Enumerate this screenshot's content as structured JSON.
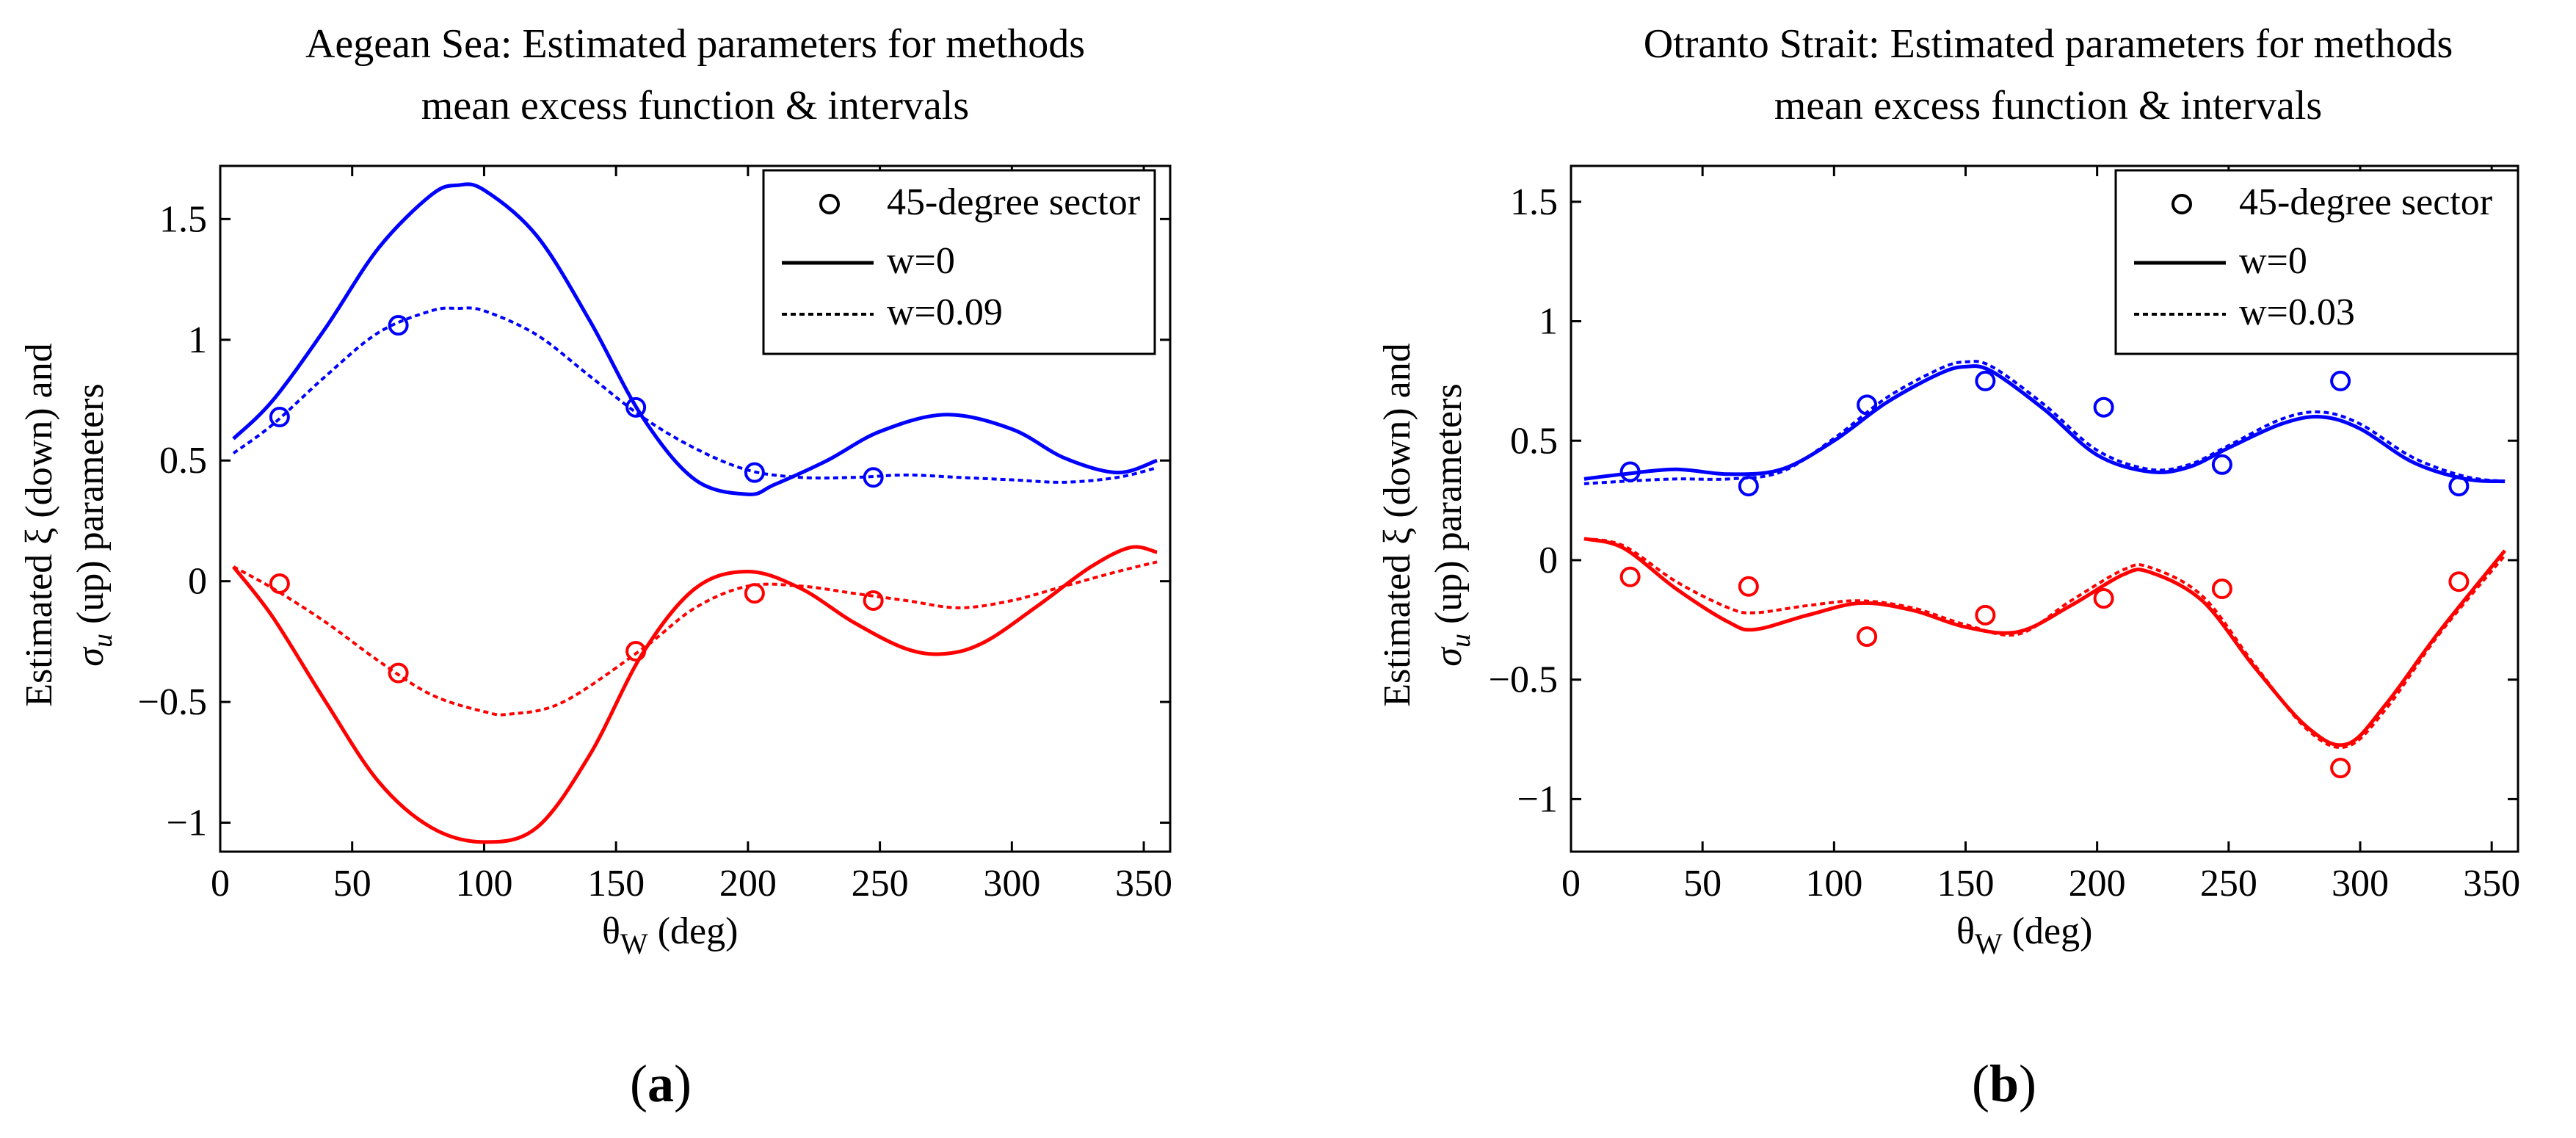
{
  "chart_data": [
    {
      "type": "line",
      "title_line1": "Aegean Sea: Estimated parameters for methods",
      "title_line2": "mean excess function & intervals",
      "xlabel_main": "θ",
      "xlabel_sub": "W",
      "xlabel_unit": "(deg)",
      "ylabel_line1": "Estimated  ξ (down) and",
      "ylabel_line2": "σ",
      "ylabel_line2_sub": "u",
      "ylabel_line2_rest": " (up) parameters",
      "xlim": [
        0,
        360
      ],
      "ylim": [
        -1.12,
        1.72
      ],
      "xticks": [
        0,
        50,
        100,
        150,
        200,
        250,
        300,
        350
      ],
      "xtick_labels": [
        "0",
        "50",
        "100",
        "150",
        "200",
        "250",
        "300",
        "350"
      ],
      "yticks": [
        -1,
        -0.5,
        0,
        0.5,
        1,
        1.5
      ],
      "ytick_labels": [
        "−1",
        "−0.5",
        "0",
        "0.5",
        "1",
        "1.5"
      ],
      "legend": {
        "placement": "top-right",
        "entries": [
          "45-degree sector",
          "w=0",
          "w=0.09"
        ]
      },
      "panel_label": "(a)",
      "panel_letter": "a",
      "colors": {
        "sigma": "#0000ff",
        "xi": "#ff0000"
      },
      "series": [
        {
          "name": "sigma w=0",
          "style": "solid",
          "color": "#0000ff",
          "x": [
            5,
            20,
            40,
            60,
            80,
            90,
            100,
            120,
            140,
            160,
            180,
            200,
            210,
            230,
            250,
            275,
            300,
            320,
            340,
            355
          ],
          "y": [
            0.59,
            0.75,
            1.05,
            1.38,
            1.6,
            1.64,
            1.62,
            1.43,
            1.08,
            0.68,
            0.42,
            0.36,
            0.4,
            0.5,
            0.62,
            0.69,
            0.63,
            0.51,
            0.45,
            0.5
          ]
        },
        {
          "name": "sigma w=0.09",
          "style": "dashed",
          "color": "#0000ff",
          "x": [
            5,
            20,
            40,
            60,
            80,
            90,
            100,
            120,
            140,
            160,
            180,
            200,
            220,
            240,
            260,
            280,
            300,
            320,
            340,
            355
          ],
          "y": [
            0.53,
            0.65,
            0.85,
            1.03,
            1.12,
            1.13,
            1.12,
            1.02,
            0.85,
            0.68,
            0.55,
            0.46,
            0.43,
            0.43,
            0.44,
            0.43,
            0.42,
            0.41,
            0.43,
            0.47
          ]
        },
        {
          "name": "xi w=0",
          "style": "solid",
          "color": "#ff0000",
          "x": [
            5,
            20,
            40,
            60,
            80,
            100,
            120,
            140,
            160,
            180,
            200,
            220,
            240,
            260,
            275,
            290,
            310,
            330,
            345,
            355
          ],
          "y": [
            0.06,
            -0.15,
            -0.5,
            -0.83,
            -1.02,
            -1.08,
            -1.02,
            -0.72,
            -0.3,
            -0.03,
            0.04,
            -0.03,
            -0.17,
            -0.28,
            -0.3,
            -0.25,
            -0.1,
            0.06,
            0.14,
            0.12
          ]
        },
        {
          "name": "xi w=0.09",
          "style": "dashed",
          "color": "#ff0000",
          "x": [
            5,
            20,
            40,
            60,
            80,
            100,
            110,
            130,
            160,
            180,
            200,
            220,
            240,
            260,
            280,
            300,
            320,
            340,
            355
          ],
          "y": [
            0.06,
            -0.03,
            -0.17,
            -0.33,
            -0.47,
            -0.54,
            -0.55,
            -0.5,
            -0.28,
            -0.11,
            -0.02,
            -0.02,
            -0.05,
            -0.08,
            -0.11,
            -0.08,
            -0.02,
            0.04,
            0.08
          ]
        },
        {
          "name": "sigma 45-degree sector",
          "style": "marker",
          "color": "#0000ff",
          "x": [
            22.5,
            67.5,
            157.5,
            202.5,
            247.5
          ],
          "y": [
            0.68,
            1.06,
            0.72,
            0.45,
            0.43
          ]
        },
        {
          "name": "xi 45-degree sector",
          "style": "marker",
          "color": "#ff0000",
          "x": [
            22.5,
            67.5,
            157.5,
            202.5,
            247.5
          ],
          "y": [
            -0.01,
            -0.38,
            -0.29,
            -0.05,
            -0.08
          ]
        }
      ]
    },
    {
      "type": "line",
      "title_line1": "Otranto Strait: Estimated parameters for methods",
      "title_line2": "mean excess function & intervals",
      "xlabel_main": "θ",
      "xlabel_sub": "W",
      "xlabel_unit": "(deg)",
      "ylabel_line1": "Estimated  ξ (down) and",
      "ylabel_line2": "σ",
      "ylabel_line2_sub": "u",
      "ylabel_line2_rest": " (up) parameters",
      "xlim": [
        0,
        360
      ],
      "ylim": [
        -1.22,
        1.65
      ],
      "xticks": [
        0,
        50,
        100,
        150,
        200,
        250,
        300,
        350
      ],
      "xtick_labels": [
        "0",
        "50",
        "100",
        "150",
        "200",
        "250",
        "300",
        "350"
      ],
      "yticks": [
        -1,
        -0.5,
        0,
        0.5,
        1,
        1.5
      ],
      "ytick_labels": [
        "−1",
        "−0.5",
        "0",
        "0.5",
        "1",
        "1.5"
      ],
      "legend": {
        "placement": "top-right",
        "entries": [
          "45-degree sector",
          "w=0",
          "w=0.03"
        ]
      },
      "panel_label": "(b)",
      "panel_letter": "b",
      "colors": {
        "sigma": "#0000ff",
        "xi": "#ff0000"
      },
      "series": [
        {
          "name": "sigma w=0",
          "style": "solid",
          "color": "#0000ff",
          "x": [
            5,
            20,
            40,
            60,
            80,
            100,
            120,
            140,
            150,
            160,
            180,
            200,
            220,
            235,
            250,
            270,
            285,
            300,
            320,
            340,
            355
          ],
          "y": [
            0.34,
            0.36,
            0.38,
            0.36,
            0.38,
            0.5,
            0.66,
            0.78,
            0.81,
            0.79,
            0.63,
            0.44,
            0.37,
            0.39,
            0.47,
            0.57,
            0.6,
            0.55,
            0.41,
            0.34,
            0.33
          ]
        },
        {
          "name": "sigma w=0.03",
          "style": "dashed",
          "color": "#0000ff",
          "x": [
            5,
            20,
            40,
            60,
            80,
            100,
            120,
            140,
            150,
            160,
            180,
            200,
            220,
            235,
            250,
            270,
            285,
            300,
            320,
            340,
            355
          ],
          "y": [
            0.32,
            0.33,
            0.34,
            0.34,
            0.37,
            0.51,
            0.68,
            0.8,
            0.83,
            0.81,
            0.65,
            0.46,
            0.38,
            0.4,
            0.48,
            0.59,
            0.62,
            0.57,
            0.43,
            0.35,
            0.33
          ]
        },
        {
          "name": "xi w=0",
          "style": "solid",
          "color": "#ff0000",
          "x": [
            5,
            20,
            40,
            60,
            70,
            90,
            110,
            130,
            150,
            170,
            190,
            210,
            220,
            240,
            260,
            280,
            295,
            310,
            330,
            355
          ],
          "y": [
            0.09,
            0.05,
            -0.12,
            -0.26,
            -0.29,
            -0.23,
            -0.18,
            -0.21,
            -0.28,
            -0.3,
            -0.19,
            -0.06,
            -0.05,
            -0.17,
            -0.45,
            -0.7,
            -0.77,
            -0.6,
            -0.3,
            0.04
          ]
        },
        {
          "name": "xi w=0.03",
          "style": "dashed",
          "color": "#ff0000",
          "x": [
            5,
            20,
            40,
            60,
            70,
            90,
            110,
            130,
            150,
            170,
            190,
            210,
            220,
            240,
            260,
            280,
            295,
            310,
            330,
            355
          ],
          "y": [
            0.09,
            0.06,
            -0.09,
            -0.2,
            -0.22,
            -0.19,
            -0.17,
            -0.2,
            -0.27,
            -0.31,
            -0.17,
            -0.04,
            -0.03,
            -0.15,
            -0.44,
            -0.71,
            -0.78,
            -0.62,
            -0.31,
            0.02
          ]
        },
        {
          "name": "sigma 45-degree sector",
          "style": "marker",
          "color": "#0000ff",
          "x": [
            22.5,
            67.5,
            112.5,
            157.5,
            202.5,
            247.5,
            292.5,
            337.5
          ],
          "y": [
            0.37,
            0.31,
            0.65,
            0.75,
            0.64,
            0.4,
            0.75,
            0.31
          ]
        },
        {
          "name": "xi 45-degree sector",
          "style": "marker",
          "color": "#ff0000",
          "x": [
            22.5,
            67.5,
            112.5,
            157.5,
            202.5,
            247.5,
            292.5,
            337.5
          ],
          "y": [
            -0.07,
            -0.11,
            -0.32,
            -0.23,
            -0.16,
            -0.12,
            -0.87,
            -0.09
          ]
        }
      ]
    }
  ]
}
